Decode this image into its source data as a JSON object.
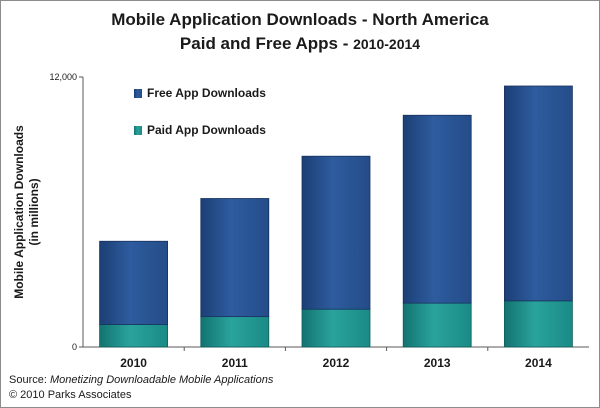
{
  "chart_data": {
    "type": "bar",
    "stacked": true,
    "title": "Mobile Application Downloads - North America",
    "subtitle_main": "Paid and Free Apps - ",
    "subtitle_years": "2010-2014",
    "ylabel_line1": "Mobile Application Downloads",
    "ylabel_line2": "(in millions)",
    "ylim": [
      0,
      12000
    ],
    "y_ticks": [
      "0",
      "12,000"
    ],
    "y_tick_values": [
      0,
      12000
    ],
    "categories": [
      "2010",
      "2011",
      "2012",
      "2013",
      "2014"
    ],
    "series": [
      {
        "name": "Paid App Downloads",
        "values": [
          1000,
          1350,
          1680,
          1950,
          2050
        ],
        "color": "#1a8a86"
      },
      {
        "name": "Free App Downloads",
        "values": [
          3700,
          5250,
          6800,
          8350,
          9550
        ],
        "color": "#244c88"
      }
    ],
    "legend_position": "top-left",
    "grid": false
  },
  "footer": {
    "source_prefix": "Source: ",
    "source_title": "Monetizing Downloadable Mobile Applications",
    "copyright": "© 2010 Parks Associates"
  },
  "colors": {
    "paid": "#1a8a86",
    "free": "#244c88",
    "axis": "#5a5a5a"
  }
}
